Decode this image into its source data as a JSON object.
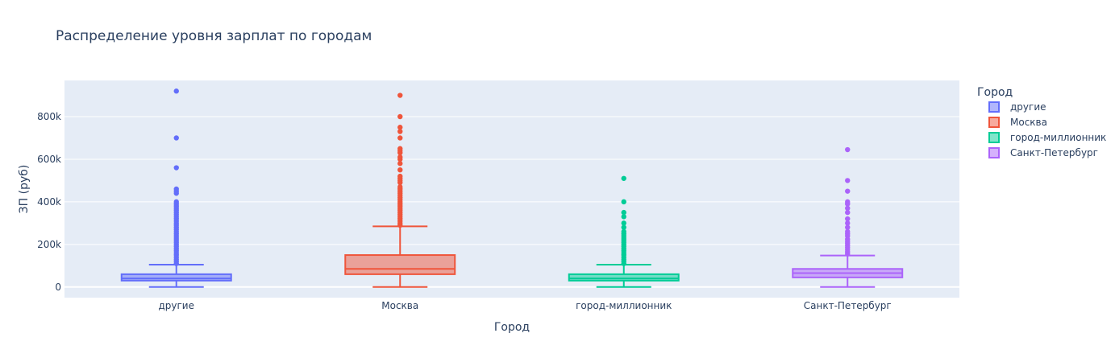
{
  "chart_data": {
    "type": "box",
    "title": "Распределение уровня зарплат по городам",
    "xlabel": "Город",
    "ylabel": "ЗП (руб)",
    "ylim": [
      -50000,
      970000
    ],
    "yticks": [
      0,
      200000,
      400000,
      600000,
      800000
    ],
    "ytick_labels": [
      "0",
      "200k",
      "400k",
      "600k",
      "800k"
    ],
    "grid": true,
    "legend": {
      "title": "Город",
      "placement": "top-right"
    },
    "categories": [
      "другие",
      "Москва",
      "город-миллионник",
      "Санкт-Петербург"
    ],
    "series": [
      {
        "name": "другие",
        "color": "#636efa",
        "min": 0,
        "q1": 30000,
        "median": 40000,
        "q3": 60000,
        "max": 105000,
        "outliers": [
          110000,
          120000,
          130000,
          140000,
          150000,
          160000,
          170000,
          180000,
          190000,
          200000,
          210000,
          220000,
          230000,
          240000,
          250000,
          260000,
          270000,
          280000,
          290000,
          300000,
          310000,
          320000,
          330000,
          340000,
          350000,
          360000,
          370000,
          380000,
          390000,
          400000,
          440000,
          450000,
          460000,
          560000,
          700000,
          920000
        ]
      },
      {
        "name": "Москва",
        "color": "#ef553b",
        "min": 0,
        "q1": 60000,
        "median": 85000,
        "q3": 150000,
        "max": 285000,
        "outliers": [
          290000,
          300000,
          310000,
          320000,
          330000,
          340000,
          350000,
          360000,
          370000,
          380000,
          390000,
          400000,
          410000,
          420000,
          430000,
          440000,
          450000,
          460000,
          470000,
          490000,
          500000,
          510000,
          520000,
          550000,
          580000,
          600000,
          610000,
          630000,
          640000,
          650000,
          700000,
          730000,
          750000,
          800000,
          900000
        ]
      },
      {
        "name": "город-миллионник",
        "color": "#00cc96",
        "min": 0,
        "q1": 30000,
        "median": 40000,
        "q3": 60000,
        "max": 105000,
        "outliers": [
          110000,
          120000,
          130000,
          140000,
          150000,
          160000,
          170000,
          180000,
          190000,
          200000,
          210000,
          220000,
          230000,
          240000,
          250000,
          260000,
          280000,
          300000,
          330000,
          350000,
          400000,
          510000
        ]
      },
      {
        "name": "Санкт-Петербург",
        "color": "#ab63fa",
        "min": 0,
        "q1": 45000,
        "median": 65000,
        "q3": 85000,
        "max": 148000,
        "outliers": [
          155000,
          165000,
          175000,
          185000,
          195000,
          205000,
          215000,
          225000,
          240000,
          250000,
          260000,
          280000,
          300000,
          320000,
          350000,
          370000,
          390000,
          400000,
          450000,
          500000,
          645000
        ]
      }
    ]
  }
}
